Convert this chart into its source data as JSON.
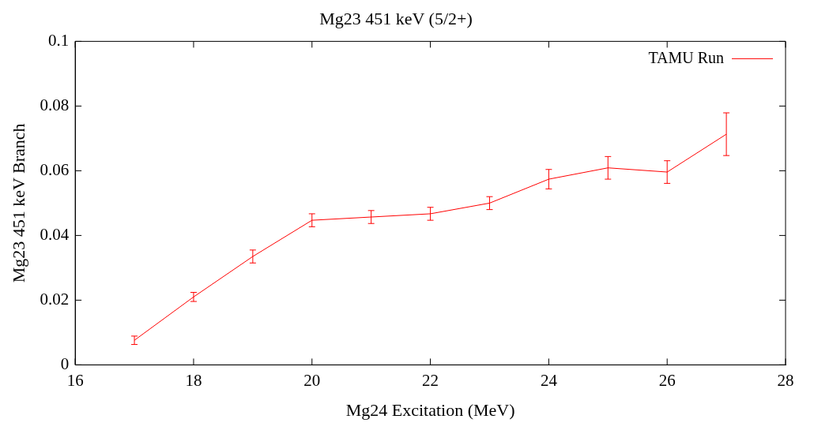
{
  "chart_data": {
    "type": "line",
    "title": "Mg23 451 keV (5/2+)",
    "xlabel": "Mg24 Excitation (MeV)",
    "ylabel": "Mg23 451 keV Branch",
    "x": [
      17,
      18,
      19,
      20,
      21,
      22,
      23,
      24,
      25,
      26,
      27
    ],
    "series": [
      {
        "name": "TAMU Run",
        "color": "#ff0000",
        "values": [
          0.0076,
          0.021,
          0.0335,
          0.0447,
          0.0457,
          0.0467,
          0.05,
          0.0574,
          0.0609,
          0.0596,
          0.0713
        ],
        "errors": [
          0.0013,
          0.0014,
          0.002,
          0.002,
          0.002,
          0.002,
          0.002,
          0.003,
          0.0035,
          0.0035,
          0.0066
        ]
      }
    ],
    "xlim": [
      16,
      28
    ],
    "xticks": [
      16,
      18,
      20,
      22,
      24,
      26,
      28
    ],
    "ylim": [
      0,
      0.1
    ],
    "yticks": [
      0,
      0.02,
      0.04,
      0.06,
      0.08,
      0.1
    ],
    "grid": false,
    "legend": "top right",
    "marker": "none",
    "line_style": "solid"
  }
}
